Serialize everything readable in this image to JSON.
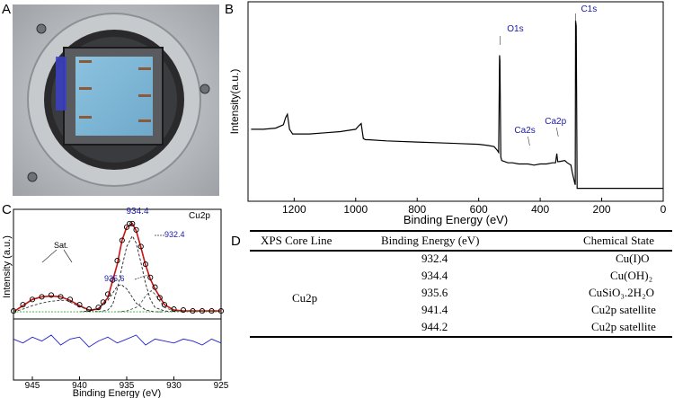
{
  "panel_labels": {
    "a": "A",
    "b": "B",
    "c": "C",
    "d": "D"
  },
  "photo": {
    "colors": {
      "outer": "#b9bcbf",
      "ring": "#2a2a2c",
      "sample": "#7fb7d6",
      "clips": "#8a5a3a"
    }
  },
  "chart_data": [
    {
      "type": "line",
      "panel": "B",
      "xlabel": "Binding Energy (eV)",
      "ylabel": "Intensity(a.u.)",
      "xlim": [
        1350,
        0
      ],
      "x_reversed": true,
      "x_ticks": [
        1200,
        1000,
        800,
        600,
        400,
        200,
        0
      ],
      "y_ticks_shown": false,
      "grid": false,
      "series": [
        {
          "color": "#000000",
          "x": [
            1340,
            1300,
            1260,
            1235,
            1228,
            1222,
            1215,
            1205,
            1150,
            1100,
            1050,
            1000,
            990,
            982,
            975,
            968,
            960,
            900,
            800,
            700,
            600,
            570,
            550,
            540,
            535,
            532,
            531,
            528,
            525,
            515,
            505,
            490,
            470,
            440,
            420,
            400,
            380,
            360,
            350,
            346,
            343,
            338,
            320,
            312,
            300,
            295,
            288,
            286,
            285,
            283,
            280,
            270,
            250,
            200,
            150,
            100,
            50,
            0
          ],
          "y": [
            56,
            56,
            57,
            60,
            66,
            69,
            56,
            52,
            52,
            53,
            54,
            56,
            59,
            61,
            48,
            47,
            47,
            46,
            45,
            44,
            43,
            42,
            41,
            38,
            36,
            120,
            115,
            32,
            29,
            28,
            27,
            27,
            26,
            26,
            25,
            26,
            26,
            27,
            27,
            35,
            28,
            28,
            29,
            27,
            25,
            18,
            10,
            8,
            150,
            145,
            5,
            5,
            5,
            5,
            5,
            5,
            5,
            5
          ]
        }
      ],
      "annotations": [
        {
          "text": "O1s",
          "x": 531
        },
        {
          "text": "C1s",
          "x": 285
        },
        {
          "text": "Ca2s",
          "x": 440
        },
        {
          "text": "Ca2p",
          "x": 347
        }
      ],
      "annotation_color": "#1a1aa6"
    },
    {
      "type": "line",
      "panel": "C",
      "title": "Cu2p",
      "xlabel": "Binding Energy (eV)",
      "ylabel": "Intensity (a.u.)",
      "xlim": [
        947,
        925
      ],
      "x_reversed": true,
      "x_ticks": [
        945,
        940,
        935,
        930,
        925
      ],
      "y_ticks_shown": false,
      "grid": false,
      "series": [
        {
          "role": "raw",
          "marker": "circle",
          "color": "#000000",
          "x": [
            947,
            946,
            945,
            944,
            943,
            942,
            941,
            940,
            939,
            938,
            937.5,
            937,
            936.5,
            936,
            935.5,
            935,
            934.7,
            934.4,
            934,
            933.5,
            933,
            932.5,
            932,
            931.5,
            931,
            930,
            929,
            928,
            927,
            926,
            925
          ],
          "y": [
            5,
            12,
            18,
            21,
            23,
            21,
            18,
            12,
            7,
            9,
            15,
            24,
            40,
            62,
            85,
            100,
            104,
            104,
            97,
            78,
            58,
            43,
            32,
            20,
            12,
            7,
            6,
            5,
            5,
            5,
            5
          ]
        },
        {
          "role": "fit-envelope",
          "color": "#cc1111",
          "x": [
            947,
            946,
            945,
            944,
            943,
            942,
            941,
            940,
            939,
            938,
            937,
            936,
            935.5,
            935,
            934.4,
            934,
            933.5,
            933,
            932.5,
            932,
            931,
            930,
            929,
            928,
            927,
            926,
            925
          ],
          "y": [
            4,
            11,
            18,
            21,
            22,
            21,
            17,
            11,
            6,
            7,
            20,
            58,
            85,
            100,
            104,
            96,
            77,
            57,
            41,
            30,
            12,
            6,
            5,
            5,
            5,
            5,
            5
          ]
        },
        {
          "role": "component",
          "dash": true,
          "color": "#222222",
          "label": "935.6",
          "x": [
            940,
            939,
            938,
            937,
            936.5,
            936,
            935.6,
            935,
            934.5,
            934,
            933,
            932,
            931
          ],
          "y": [
            4,
            5,
            8,
            17,
            25,
            33,
            35,
            30,
            22,
            14,
            6,
            4,
            4
          ]
        },
        {
          "role": "component",
          "dash": true,
          "color": "#222222",
          "label": "934.4",
          "x": [
            938,
            937,
            936.5,
            936,
            935.5,
            935,
            934.4,
            934,
            933.5,
            933,
            932.5,
            932,
            931,
            930
          ],
          "y": [
            4,
            6,
            12,
            30,
            55,
            78,
            90,
            82,
            60,
            36,
            18,
            9,
            5,
            4
          ]
        },
        {
          "role": "component",
          "dash": true,
          "color": "#555555",
          "label": "932.4",
          "x": [
            936,
            935,
            934,
            933.5,
            933,
            932.4,
            932,
            931.5,
            931,
            930,
            929
          ],
          "y": [
            4,
            5,
            9,
            14,
            22,
            28,
            24,
            16,
            9,
            5,
            4
          ]
        },
        {
          "role": "component",
          "dash": true,
          "color": "#333333",
          "label": "satellite",
          "x": [
            947,
            946,
            945,
            944,
            943,
            942,
            941.4,
            941,
            940,
            939,
            938
          ],
          "y": [
            4,
            7,
            11,
            14,
            16,
            17,
            17,
            15,
            10,
            6,
            4
          ]
        },
        {
          "role": "baseline",
          "color": "#2ca02c",
          "dotted": true,
          "x": [
            947,
            925
          ],
          "y": [
            4,
            4
          ]
        },
        {
          "role": "residual",
          "color": "#2222cc",
          "x": [
            947,
            946,
            945,
            944,
            943,
            942,
            941,
            940,
            939,
            938,
            937,
            936,
            935,
            934,
            933,
            932,
            931,
            930,
            929,
            928,
            927,
            926,
            925
          ],
          "y": [
            -16,
            -18,
            -15,
            -17,
            -14,
            -19,
            -16,
            -15,
            -20,
            -17,
            -15,
            -18,
            -16,
            -14,
            -19,
            -16,
            -17,
            -18,
            -16,
            -17,
            -19,
            -16,
            -18
          ]
        }
      ],
      "annotations": [
        {
          "text": "934.4",
          "color": "#1a1aa6"
        },
        {
          "text": "935.6",
          "color": "#1a1aa6"
        },
        {
          "text": "932.4",
          "color": "#1a1aa6"
        },
        {
          "text": "Sat.",
          "color": "#000000"
        }
      ]
    },
    {
      "type": "table",
      "panel": "D",
      "columns": [
        "XPS Core Line",
        "Binding Energy (eV)",
        "Chemical State"
      ],
      "group_label": "Cu2p",
      "rows": [
        {
          "energy": "932.4",
          "state": "Cu(I)O"
        },
        {
          "energy": "934.4",
          "state": "Cu(OH)₂"
        },
        {
          "energy": "935.6",
          "state": "CuSiO₃.2H₂O"
        },
        {
          "energy": "941.4",
          "state": "Cu2p satellite"
        },
        {
          "energy": "944.2",
          "state": "Cu2p satellite"
        }
      ]
    }
  ]
}
